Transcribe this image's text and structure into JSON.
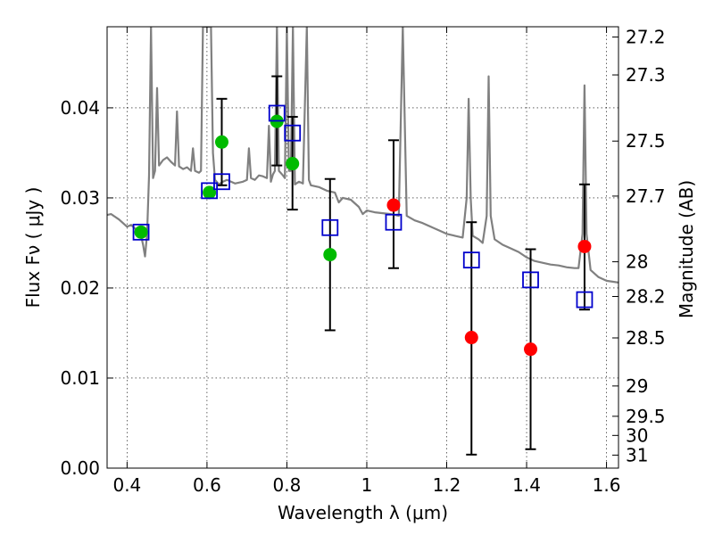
{
  "chart_data": {
    "type": "scatter",
    "xlabel": "Wavelength  λ (μm)",
    "ylabel": "Flux  Fν  ( μJy )",
    "ylabel_right": "Magnitude (AB)",
    "xlim": [
      0.35,
      1.63
    ],
    "ylim": [
      0.0,
      0.049
    ],
    "grid": true,
    "x_ticks": [
      0.4,
      0.6,
      0.8,
      1.0,
      1.2,
      1.4,
      1.6
    ],
    "x_tick_labels": [
      "0.4",
      "0.6",
      "0.8",
      "1",
      "1.2",
      "1.4",
      "1.6"
    ],
    "y_ticks": [
      0.0,
      0.01,
      0.02,
      0.03,
      0.04
    ],
    "y_tick_labels": [
      "0.00",
      "0.01",
      "0.02",
      "0.03",
      "0.04"
    ],
    "right_ticks": [
      {
        "label": "27.2",
        "mag": 27.2
      },
      {
        "label": "27.3",
        "mag": 27.3
      },
      {
        "label": "27.5",
        "mag": 27.5
      },
      {
        "label": "27.7",
        "mag": 27.7
      },
      {
        "label": "28",
        "mag": 28.0
      },
      {
        "label": "28.2",
        "mag": 28.2
      },
      {
        "label": "28.5",
        "mag": 28.5
      },
      {
        "label": "29",
        "mag": 29.0
      },
      {
        "label": "29.5",
        "mag": 29.5
      },
      {
        "label": "30",
        "mag": 30.0
      },
      {
        "label": "31",
        "mag": 31.0
      }
    ],
    "colors": {
      "model": "#808080",
      "green": "#00bb00",
      "red": "#ff0000",
      "square": "#0000cc",
      "errorbar": "#000000",
      "grid": "#000000"
    },
    "series": [
      {
        "marker": "square",
        "values": [
          {
            "x": 0.435,
            "y": 0.0262
          },
          {
            "x": 0.606,
            "y": 0.0308
          },
          {
            "x": 0.637,
            "y": 0.0318
          },
          {
            "x": 0.775,
            "y": 0.0394
          },
          {
            "x": 0.814,
            "y": 0.0372
          },
          {
            "x": 0.908,
            "y": 0.0267
          },
          {
            "x": 1.067,
            "y": 0.0273
          },
          {
            "x": 1.262,
            "y": 0.0231
          },
          {
            "x": 1.41,
            "y": 0.0209
          },
          {
            "x": 1.545,
            "y": 0.0187
          }
        ]
      },
      {
        "marker": "green-circle",
        "values": [
          {
            "x": 0.435,
            "y": 0.0262
          },
          {
            "x": 0.606,
            "y": 0.0306
          },
          {
            "x": 0.637,
            "y": 0.0362,
            "err_low": 0.0314,
            "err_high": 0.041
          },
          {
            "x": 0.775,
            "y": 0.0385,
            "err_low": 0.0336,
            "err_high": 0.0435
          },
          {
            "x": 0.814,
            "y": 0.0338,
            "err_low": 0.0287,
            "err_high": 0.039
          },
          {
            "x": 0.908,
            "y": 0.0237,
            "err_low": 0.0153,
            "err_high": 0.0321
          }
        ]
      },
      {
        "marker": "red-circle",
        "values": [
          {
            "x": 1.067,
            "y": 0.0292,
            "err_low": 0.0222,
            "err_high": 0.0364
          },
          {
            "x": 1.262,
            "y": 0.0145,
            "err_low": 0.0015,
            "err_high": 0.0273
          },
          {
            "x": 1.41,
            "y": 0.0132,
            "err_low": 0.0021,
            "err_high": 0.0243
          },
          {
            "x": 1.545,
            "y": 0.0246,
            "err_low": 0.0176,
            "err_high": 0.0315
          }
        ]
      }
    ],
    "model_curve": [
      [
        0.35,
        0.0281
      ],
      [
        0.36,
        0.0282
      ],
      [
        0.38,
        0.0276
      ],
      [
        0.4,
        0.0268
      ],
      [
        0.41,
        0.027
      ],
      [
        0.42,
        0.0266
      ],
      [
        0.43,
        0.0262
      ],
      [
        0.435,
        0.0258
      ],
      [
        0.44,
        0.0248
      ],
      [
        0.445,
        0.0235
      ],
      [
        0.45,
        0.026
      ],
      [
        0.455,
        0.0325
      ],
      [
        0.46,
        0.049
      ],
      [
        0.465,
        0.0322
      ],
      [
        0.47,
        0.033
      ],
      [
        0.475,
        0.0422
      ],
      [
        0.48,
        0.0336
      ],
      [
        0.49,
        0.0342
      ],
      [
        0.5,
        0.0345
      ],
      [
        0.51,
        0.034
      ],
      [
        0.52,
        0.0336
      ],
      [
        0.525,
        0.0396
      ],
      [
        0.53,
        0.0335
      ],
      [
        0.54,
        0.0332
      ],
      [
        0.55,
        0.0334
      ],
      [
        0.56,
        0.033
      ],
      [
        0.565,
        0.0355
      ],
      [
        0.57,
        0.033
      ],
      [
        0.58,
        0.0328
      ],
      [
        0.585,
        0.033
      ],
      [
        0.59,
        0.049
      ],
      [
        0.595,
        0.049
      ],
      [
        0.6,
        0.049
      ],
      [
        0.605,
        0.049
      ],
      [
        0.61,
        0.049
      ],
      [
        0.615,
        0.035
      ],
      [
        0.62,
        0.032
      ],
      [
        0.63,
        0.0315
      ],
      [
        0.64,
        0.0318
      ],
      [
        0.65,
        0.032
      ],
      [
        0.66,
        0.0318
      ],
      [
        0.67,
        0.0316
      ],
      [
        0.68,
        0.0317
      ],
      [
        0.69,
        0.0318
      ],
      [
        0.7,
        0.032
      ],
      [
        0.705,
        0.0355
      ],
      [
        0.71,
        0.0322
      ],
      [
        0.72,
        0.032
      ],
      [
        0.73,
        0.0325
      ],
      [
        0.74,
        0.0324
      ],
      [
        0.75,
        0.0322
      ],
      [
        0.755,
        0.038
      ],
      [
        0.76,
        0.0318
      ],
      [
        0.765,
        0.0326
      ],
      [
        0.77,
        0.033
      ],
      [
        0.775,
        0.049
      ],
      [
        0.78,
        0.033
      ],
      [
        0.79,
        0.0325
      ],
      [
        0.795,
        0.0322
      ],
      [
        0.8,
        0.049
      ],
      [
        0.805,
        0.033
      ],
      [
        0.81,
        0.033
      ],
      [
        0.815,
        0.049
      ],
      [
        0.82,
        0.0315
      ],
      [
        0.83,
        0.0318
      ],
      [
        0.84,
        0.0316
      ],
      [
        0.85,
        0.049
      ],
      [
        0.855,
        0.032
      ],
      [
        0.86,
        0.0314
      ],
      [
        0.88,
        0.0312
      ],
      [
        0.9,
        0.0308
      ],
      [
        0.92,
        0.0306
      ],
      [
        0.93,
        0.0295
      ],
      [
        0.94,
        0.03
      ],
      [
        0.96,
        0.0298
      ],
      [
        0.98,
        0.029
      ],
      [
        0.99,
        0.0282
      ],
      [
        1.0,
        0.0286
      ],
      [
        1.02,
        0.0284
      ],
      [
        1.04,
        0.0283
      ],
      [
        1.06,
        0.0282
      ],
      [
        1.08,
        0.028
      ],
      [
        1.09,
        0.049
      ],
      [
        1.1,
        0.028
      ],
      [
        1.12,
        0.0275
      ],
      [
        1.14,
        0.0272
      ],
      [
        1.16,
        0.0268
      ],
      [
        1.18,
        0.0264
      ],
      [
        1.2,
        0.026
      ],
      [
        1.22,
        0.0258
      ],
      [
        1.24,
        0.0256
      ],
      [
        1.25,
        0.03
      ],
      [
        1.255,
        0.041
      ],
      [
        1.26,
        0.03
      ],
      [
        1.265,
        0.0258
      ],
      [
        1.28,
        0.0254
      ],
      [
        1.29,
        0.025
      ],
      [
        1.3,
        0.028
      ],
      [
        1.305,
        0.0435
      ],
      [
        1.31,
        0.028
      ],
      [
        1.32,
        0.0254
      ],
      [
        1.34,
        0.0248
      ],
      [
        1.36,
        0.0244
      ],
      [
        1.38,
        0.024
      ],
      [
        1.4,
        0.0234
      ],
      [
        1.42,
        0.023
      ],
      [
        1.44,
        0.0228
      ],
      [
        1.46,
        0.0226
      ],
      [
        1.48,
        0.0225
      ],
      [
        1.5,
        0.0223
      ],
      [
        1.52,
        0.0222
      ],
      [
        1.53,
        0.0222
      ],
      [
        1.54,
        0.026
      ],
      [
        1.545,
        0.0425
      ],
      [
        1.55,
        0.026
      ],
      [
        1.56,
        0.022
      ],
      [
        1.58,
        0.0212
      ],
      [
        1.6,
        0.0208
      ],
      [
        1.63,
        0.0206
      ]
    ]
  }
}
